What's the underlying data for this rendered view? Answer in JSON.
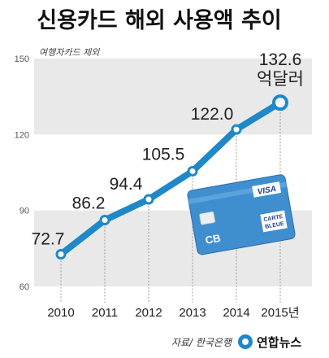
{
  "colors": {
    "line": "#1e88c9",
    "band": "#e9e9e9",
    "card": "#3f8fd0",
    "card_stripe": "#2e79b9"
  },
  "chart_data": {
    "type": "line",
    "title": "신용카드 해외 사용액 추이",
    "subtitle": "여행자카드 제외",
    "x": [
      "2010",
      "2011",
      "2012",
      "2013",
      "2014",
      "2015년"
    ],
    "series": [
      {
        "values": [
          72.7,
          86.2,
          94.4,
          105.5,
          122.0,
          132.6
        ]
      }
    ],
    "value_labels": [
      "72.7",
      "86.2",
      "94.4",
      "105.5",
      "122.0",
      "132.6"
    ],
    "last_value_unit": "억달러",
    "yticks": [
      "150",
      "120",
      "90",
      "60"
    ],
    "ylim": [
      60,
      150
    ],
    "grid": false
  },
  "card": {
    "brand": "VISA",
    "sub_brand_line1": "CARTE",
    "sub_brand_line2": "BLEUE",
    "logo_mark": "CB",
    "icon": "credit-card-icon"
  },
  "footer": {
    "source": "자료/ 한국은행",
    "logo": "연합뉴스",
    "logo_icon": "yonhap-news-icon"
  }
}
